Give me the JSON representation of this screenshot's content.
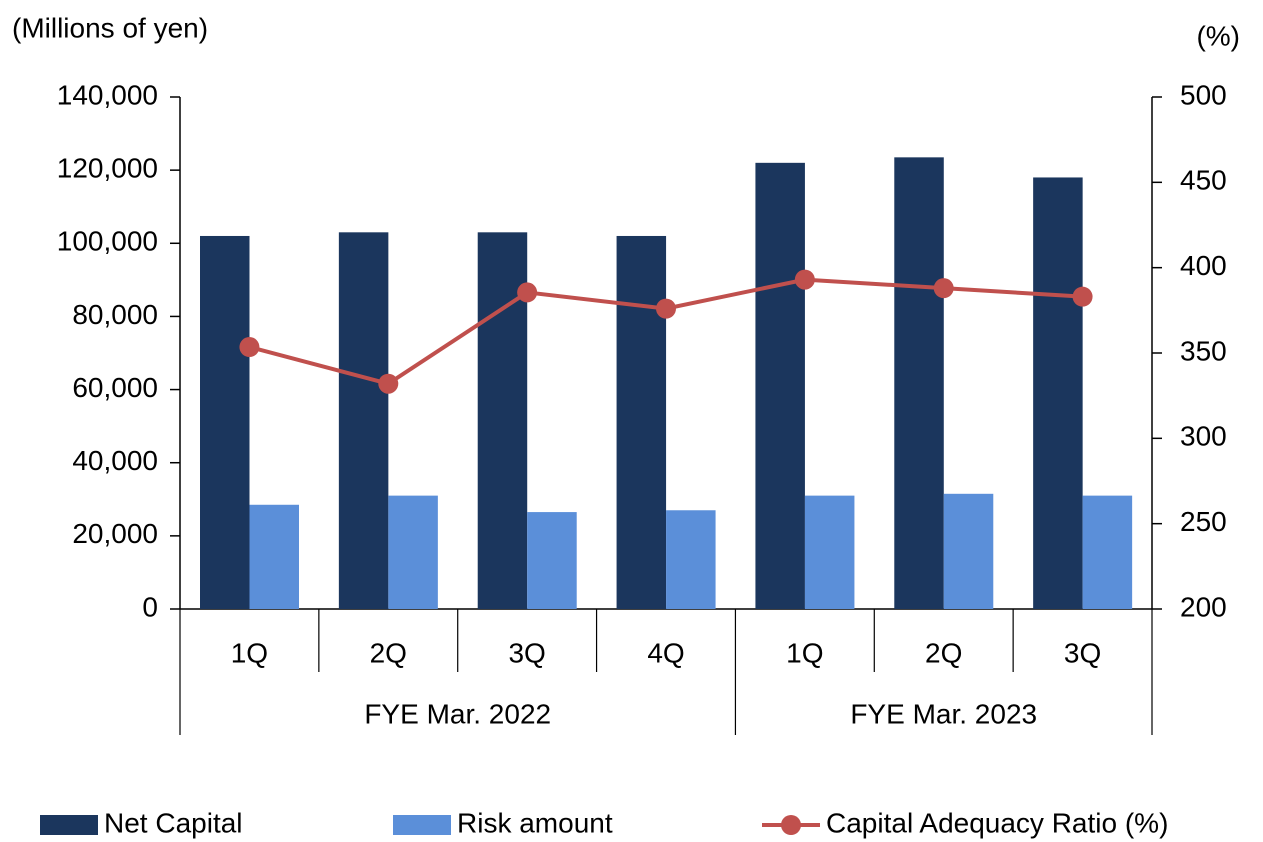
{
  "chart_data": {
    "type": "bar",
    "y_axis_label": "(Millions of yen)",
    "y2_axis_label": "(%)",
    "categories": [
      "1Q",
      "2Q",
      "3Q",
      "4Q",
      "1Q",
      "2Q",
      "3Q"
    ],
    "groups": [
      {
        "label": "FYE Mar. 2022",
        "count": 4
      },
      {
        "label": "FYE Mar. 2023",
        "count": 3
      }
    ],
    "series": [
      {
        "name": "Net Capital",
        "type": "bar",
        "color": "#1b365d",
        "values": [
          102000,
          103000,
          103000,
          102000,
          122000,
          123500,
          118000
        ]
      },
      {
        "name": "Risk amount",
        "type": "bar",
        "color": "#5b8fd9",
        "values": [
          28500,
          31000,
          26500,
          27000,
          31000,
          31500,
          31000
        ]
      },
      {
        "name": "Capital Adequacy Ratio (%)",
        "type": "line",
        "axis": "y2",
        "color": "#c0504d",
        "values": [
          353.5,
          332,
          385.5,
          376,
          393,
          388,
          383
        ]
      }
    ],
    "ylim": [
      0,
      140000
    ],
    "yticks": [
      0,
      {
        "value": 20000,
        "label": "20,000"
      },
      {
        "value": 40000,
        "label": "40,000"
      },
      {
        "value": 60000,
        "label": "60,000"
      },
      {
        "value": 80000,
        "label": "80,000"
      },
      {
        "value": 100000,
        "label": "100,000"
      },
      {
        "value": 120000,
        "label": "120,000"
      },
      {
        "value": 140000,
        "label": "140,000"
      }
    ],
    "y2lim": [
      200,
      500
    ],
    "y2ticks": [
      200,
      250,
      300,
      350,
      400,
      450,
      500
    ],
    "legend": "bottom"
  }
}
